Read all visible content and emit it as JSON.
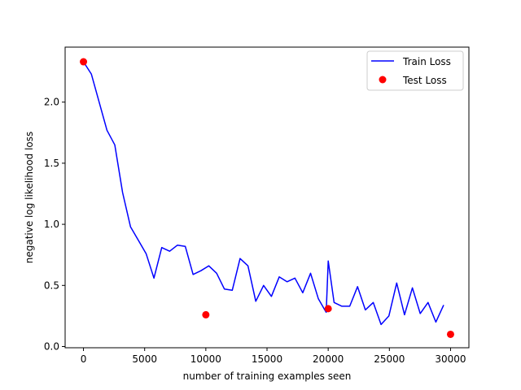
{
  "chart_data": {
    "type": "line",
    "title": "",
    "xlabel": "number of training examples seen",
    "ylabel": "negative log likelihood loss",
    "xlim": [
      -1500,
      31500
    ],
    "ylim": [
      -0.01,
      2.45
    ],
    "x_ticks": [
      0,
      5000,
      10000,
      15000,
      20000,
      25000,
      30000
    ],
    "x_tick_labels": [
      "0",
      "5000",
      "10000",
      "15000",
      "20000",
      "25000",
      "30000"
    ],
    "y_ticks": [
      0.0,
      0.5,
      1.0,
      1.5,
      2.0
    ],
    "y_tick_labels": [
      "0.0",
      "0.5",
      "1.0",
      "1.5",
      "2.0"
    ],
    "grid": false,
    "legend_position": "top-right",
    "series": [
      {
        "name": "Train Loss",
        "kind": "line",
        "color": "#0000ff",
        "x": [
          0,
          640,
          1280,
          1920,
          2560,
          3200,
          3840,
          4480,
          5120,
          5760,
          6400,
          7040,
          7680,
          8320,
          8960,
          9600,
          10240,
          10880,
          11520,
          12160,
          12800,
          13440,
          14080,
          14720,
          15360,
          16000,
          16640,
          17280,
          17920,
          18560,
          19200,
          19840,
          20000,
          20480,
          21120,
          21760,
          22400,
          23040,
          23680,
          24320,
          24960,
          25600,
          26240,
          26880,
          27520,
          28160,
          28800,
          29440
        ],
        "y": [
          2.33,
          2.23,
          2.0,
          1.77,
          1.65,
          1.26,
          0.98,
          0.87,
          0.76,
          0.56,
          0.81,
          0.78,
          0.83,
          0.82,
          0.59,
          0.62,
          0.66,
          0.6,
          0.47,
          0.46,
          0.72,
          0.66,
          0.37,
          0.5,
          0.41,
          0.57,
          0.53,
          0.56,
          0.44,
          0.6,
          0.39,
          0.28,
          0.7,
          0.36,
          0.33,
          0.33,
          0.49,
          0.3,
          0.36,
          0.18,
          0.25,
          0.52,
          0.26,
          0.48,
          0.27,
          0.36,
          0.2,
          0.34
        ]
      },
      {
        "name": "Test Loss",
        "kind": "scatter",
        "color": "#ff0000",
        "x": [
          0,
          10000,
          20000,
          30000
        ],
        "y": [
          2.33,
          0.26,
          0.31,
          0.1
        ]
      }
    ]
  }
}
